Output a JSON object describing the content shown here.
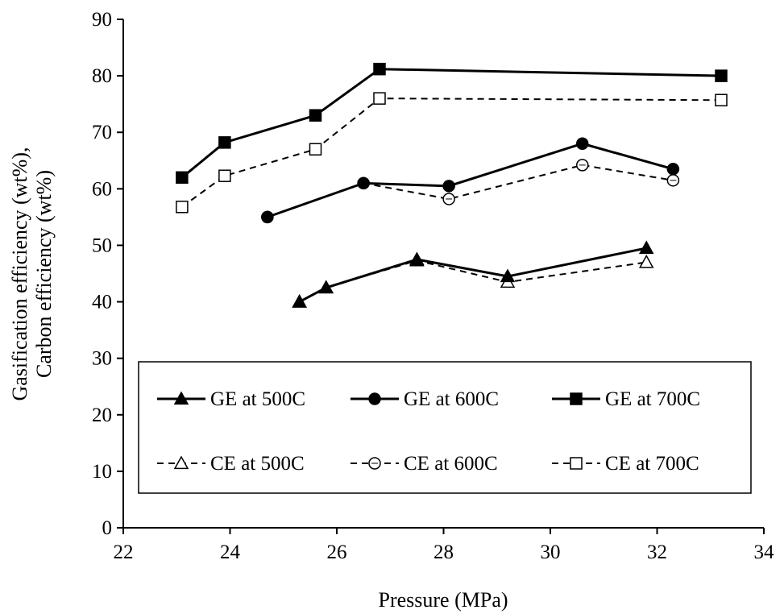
{
  "chart_data": {
    "type": "line",
    "title": "",
    "xlabel": "Pressure (MPa)",
    "ylabel_line1": "Gasification efficiency (wt%),",
    "ylabel_line2": "Carbon efficiency (wt%)",
    "xlim": [
      22,
      34
    ],
    "ylim": [
      0,
      90
    ],
    "xticks": [
      22,
      24,
      26,
      28,
      30,
      32,
      34
    ],
    "yticks": [
      0,
      10,
      20,
      30,
      40,
      50,
      60,
      70,
      80,
      90
    ],
    "grid": false,
    "legend_placement": "bottom-center, boxed, two rows",
    "series": [
      {
        "name": "GE at 500C",
        "marker": "triangle",
        "filled": true,
        "dashed": false,
        "x": [
          25.3,
          25.8,
          27.5,
          29.2,
          31.8
        ],
        "y": [
          40,
          42.5,
          47.5,
          44.5,
          49.5
        ]
      },
      {
        "name": "GE at 600C",
        "marker": "circle",
        "filled": true,
        "dashed": false,
        "x": [
          24.7,
          26.5,
          28.1,
          30.6,
          32.3
        ],
        "y": [
          55,
          61,
          60.5,
          68,
          63.5
        ]
      },
      {
        "name": "GE at 700C",
        "marker": "square",
        "filled": true,
        "dashed": false,
        "x": [
          23.1,
          23.9,
          25.6,
          26.8,
          33.2
        ],
        "y": [
          62,
          68.2,
          73,
          81.2,
          80
        ]
      },
      {
        "name": "CE at 500C",
        "marker": "triangle",
        "filled": false,
        "dashed": true,
        "x": [
          25.3,
          25.8,
          27.5,
          29.2,
          31.8
        ],
        "y": [
          40,
          42.5,
          47.3,
          43.5,
          47
        ]
      },
      {
        "name": "CE at 600C",
        "marker": "circle",
        "filled": false,
        "dashed": true,
        "x": [
          24.7,
          26.5,
          28.1,
          30.6,
          32.3
        ],
        "y": [
          55,
          61,
          58.2,
          64.2,
          61.5
        ]
      },
      {
        "name": "CE at 700C",
        "marker": "square",
        "filled": false,
        "dashed": true,
        "x": [
          23.1,
          23.9,
          25.6,
          26.8,
          33.2
        ],
        "y": [
          56.8,
          62.3,
          67,
          76,
          75.7
        ]
      }
    ]
  }
}
